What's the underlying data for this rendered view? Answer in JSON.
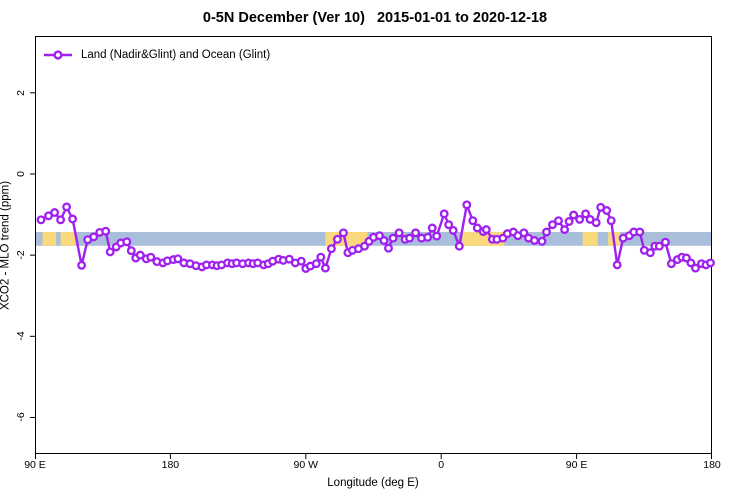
{
  "title": "0-5N December (Ver 10)   2015-01-01 to 2020-12-18",
  "legend": {
    "label": "Land (Nadir&Glint) and Ocean (Glint)"
  },
  "axes": {
    "xlabel": "Longitude (deg E)",
    "ylabel": "XCO2 - MLO trend (ppm)"
  },
  "colors": {
    "series_line": "#A020F0",
    "marker_fill": "#FFFFFF",
    "band_blue": "#A9BEDB",
    "band_orange": "#FAD87C",
    "frame": "#000000"
  },
  "chart_data": {
    "type": "line",
    "title": "0-5N December (Ver 10)   2015-01-01 to 2020-12-18",
    "xlabel": "Longitude (deg E)",
    "ylabel": "XCO2 - MLO trend (ppm)",
    "legend_position": "top-left",
    "grid": false,
    "x_axis": {
      "min": 90,
      "max": 540,
      "tick_values": [
        90,
        180,
        270,
        360,
        450,
        540
      ],
      "tick_labels": [
        "90 E",
        "180",
        "90 W",
        "0",
        "90 E",
        "180"
      ],
      "note": "longitude increases eastward from 90E, wrapping through 180, 90W, 0, 90E to 180"
    },
    "y_axis": {
      "min": -6.9,
      "max": 3.4,
      "tick_values": [
        2,
        0,
        -2,
        -4,
        -6
      ],
      "tick_labels": [
        "2",
        "0",
        "-2",
        "-4",
        "-6"
      ]
    },
    "reference_band": {
      "y_from": -1.77,
      "y_to": -1.43,
      "base_color": "#A9BEDB",
      "highlight_color": "#FAD87C",
      "highlight_x_segments": [
        [
          95,
          104
        ],
        [
          107,
          117
        ],
        [
          283,
          311
        ],
        [
          374,
          402
        ],
        [
          454,
          464
        ],
        [
          471,
          479
        ]
      ]
    },
    "series": [
      {
        "name": "Land (Nadir&Glint) and Ocean (Glint)",
        "color": "#A020F0",
        "marker": "open-circle",
        "points": [
          [
            94,
            -1.13
          ],
          [
            99,
            -1.03
          ],
          [
            103,
            -0.95
          ],
          [
            107,
            -1.13
          ],
          [
            111,
            -0.81
          ],
          [
            115,
            -1.11
          ],
          [
            121,
            -2.25
          ],
          [
            125,
            -1.62
          ],
          [
            129,
            -1.55
          ],
          [
            133,
            -1.44
          ],
          [
            137,
            -1.41
          ],
          [
            140,
            -1.92
          ],
          [
            144,
            -1.8
          ],
          [
            147,
            -1.7
          ],
          [
            151,
            -1.67
          ],
          [
            154,
            -1.89
          ],
          [
            157,
            -2.07
          ],
          [
            160,
            -2.0
          ],
          [
            164,
            -2.09
          ],
          [
            167,
            -2.05
          ],
          [
            171,
            -2.16
          ],
          [
            175,
            -2.19
          ],
          [
            178,
            -2.14
          ],
          [
            182,
            -2.11
          ],
          [
            185,
            -2.09
          ],
          [
            189,
            -2.19
          ],
          [
            193,
            -2.21
          ],
          [
            197,
            -2.26
          ],
          [
            201,
            -2.29
          ],
          [
            204,
            -2.24
          ],
          [
            208,
            -2.24
          ],
          [
            211,
            -2.26
          ],
          [
            214,
            -2.24
          ],
          [
            218,
            -2.19
          ],
          [
            221,
            -2.21
          ],
          [
            224,
            -2.19
          ],
          [
            228,
            -2.21
          ],
          [
            232,
            -2.19
          ],
          [
            235,
            -2.21
          ],
          [
            238,
            -2.19
          ],
          [
            242,
            -2.24
          ],
          [
            245,
            -2.21
          ],
          [
            248,
            -2.15
          ],
          [
            252,
            -2.1
          ],
          [
            255,
            -2.13
          ],
          [
            259,
            -2.1
          ],
          [
            263,
            -2.19
          ],
          [
            267,
            -2.15
          ],
          [
            270,
            -2.33
          ],
          [
            273,
            -2.27
          ],
          [
            277,
            -2.21
          ],
          [
            280,
            -2.05
          ],
          [
            283,
            -2.32
          ],
          [
            287,
            -1.84
          ],
          [
            291,
            -1.61
          ],
          [
            295,
            -1.45
          ],
          [
            298,
            -1.94
          ],
          [
            301,
            -1.88
          ],
          [
            305,
            -1.84
          ],
          [
            309,
            -1.78
          ],
          [
            312,
            -1.66
          ],
          [
            315,
            -1.56
          ],
          [
            319,
            -1.52
          ],
          [
            322,
            -1.64
          ],
          [
            325,
            -1.83
          ],
          [
            328,
            -1.58
          ],
          [
            332,
            -1.45
          ],
          [
            336,
            -1.61
          ],
          [
            339,
            -1.58
          ],
          [
            343,
            -1.45
          ],
          [
            347,
            -1.58
          ],
          [
            351,
            -1.56
          ],
          [
            354,
            -1.33
          ],
          [
            357,
            -1.53
          ],
          [
            362,
            -0.98
          ],
          [
            365,
            -1.25
          ],
          [
            368,
            -1.39
          ],
          [
            372,
            -1.78
          ],
          [
            377,
            -0.76
          ],
          [
            381,
            -1.15
          ],
          [
            384,
            -1.33
          ],
          [
            388,
            -1.42
          ],
          [
            390,
            -1.37
          ],
          [
            394,
            -1.61
          ],
          [
            397,
            -1.61
          ],
          [
            401,
            -1.58
          ],
          [
            404,
            -1.47
          ],
          [
            408,
            -1.43
          ],
          [
            411,
            -1.52
          ],
          [
            415,
            -1.45
          ],
          [
            418,
            -1.58
          ],
          [
            422,
            -1.64
          ],
          [
            427,
            -1.66
          ],
          [
            430,
            -1.43
          ],
          [
            434,
            -1.25
          ],
          [
            438,
            -1.15
          ],
          [
            442,
            -1.37
          ],
          [
            445,
            -1.17
          ],
          [
            448,
            -1.01
          ],
          [
            452,
            -1.12
          ],
          [
            456,
            -0.98
          ],
          [
            459,
            -1.12
          ],
          [
            463,
            -1.2
          ],
          [
            466,
            -0.82
          ],
          [
            470,
            -0.9
          ],
          [
            473,
            -1.15
          ],
          [
            477,
            -2.24
          ],
          [
            481,
            -1.58
          ],
          [
            485,
            -1.52
          ],
          [
            488,
            -1.43
          ],
          [
            492,
            -1.43
          ],
          [
            495,
            -1.88
          ],
          [
            499,
            -1.94
          ],
          [
            502,
            -1.78
          ],
          [
            505,
            -1.78
          ],
          [
            509,
            -1.68
          ],
          [
            513,
            -2.21
          ],
          [
            517,
            -2.11
          ],
          [
            520,
            -2.05
          ],
          [
            523,
            -2.07
          ],
          [
            526,
            -2.19
          ],
          [
            529,
            -2.32
          ],
          [
            533,
            -2.21
          ],
          [
            536,
            -2.24
          ],
          [
            539,
            -2.19
          ]
        ]
      }
    ]
  }
}
